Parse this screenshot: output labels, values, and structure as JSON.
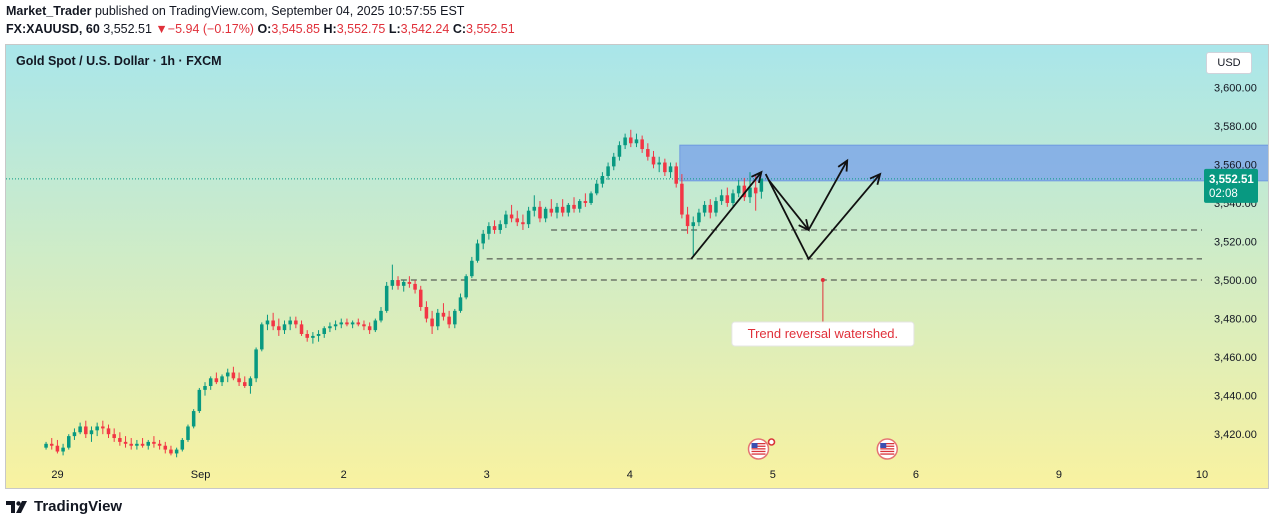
{
  "header": {
    "author": "Market_Trader",
    "published_text": "published on TradingView.com, September 04, 2025 10:57:55 EST",
    "symbol": "FX:XAUUSD, 60",
    "last": "3,552.51",
    "change_arrow": "▼",
    "change": "−5.94 (−0.17%)",
    "o_label": "O:",
    "o_value": "3,545.85",
    "h_label": "H:",
    "h_value": "3,552.75",
    "l_label": "L:",
    "l_value": "3,542.24",
    "c_label": "C:",
    "c_value": "3,552.51"
  },
  "chart": {
    "title": "Gold Spot / U.S. Dollar · 1h · FXCM",
    "currency_button": "USD"
  },
  "chart_data": {
    "type": "candlestick",
    "title": "Gold Spot / U.S. Dollar · 1h · FXCM",
    "y_ticks": [
      "3,600.00",
      "3,580.00",
      "3,560.00",
      "3,540.00",
      "3,520.00",
      "3,500.00",
      "3,480.00",
      "3,460.00",
      "3,440.00",
      "3,420.00"
    ],
    "y_tick_values": [
      3600,
      3580,
      3560,
      3540,
      3520,
      3500,
      3480,
      3460,
      3440,
      3420
    ],
    "ylim": [
      3404,
      3622
    ],
    "x_ticks": [
      "29",
      "Sep",
      "2",
      "3",
      "4",
      "5",
      "6",
      "9",
      "10"
    ],
    "x_tick_day_index": [
      0,
      1,
      2,
      3,
      4,
      5,
      6,
      7,
      8
    ],
    "xlim_day_index": [
      -0.36,
      8.0
    ],
    "last_price_label": "3,552.51",
    "countdown_label": "02:08",
    "last_price": 3552.51,
    "colors": {
      "up": "#089981",
      "down": "#f23645",
      "zone": "#7fa8e8",
      "annotation": "#e0303a",
      "bg_top": "#a9e6ea",
      "bg_bottom": "#f9f2a0"
    },
    "bg_gradient_y": [
      3622,
      3404
    ],
    "watermark": "TradingView",
    "zone": {
      "y_low": 3551.5,
      "y_high": 3570,
      "x_start": 4.35,
      "x_end": 8.9
    },
    "dashed_levels": [
      {
        "y": 3526,
        "x_start": 3.45
      },
      {
        "y": 3511,
        "x_start": 3.0
      },
      {
        "y": 3500,
        "x_start": 2.4
      }
    ],
    "arrows": [
      {
        "points": [
          [
            4.43,
            3511
          ],
          [
            4.92,
            3556
          ]
        ]
      },
      {
        "points": [
          [
            4.97,
            3552
          ],
          [
            5.25,
            3526
          ]
        ]
      },
      {
        "points": [
          [
            5.25,
            3526
          ],
          [
            5.52,
            3562
          ]
        ]
      },
      {
        "points": [
          [
            4.95,
            3555
          ],
          [
            5.25,
            3511
          ],
          [
            5.75,
            3555
          ]
        ]
      }
    ],
    "annotation": {
      "text": "Trend reversal watershed.",
      "anchor": [
        5.35,
        3500
      ],
      "label_y": 3472
    },
    "event_icons": [
      {
        "x": 4.9
      },
      {
        "x": 5.8
      }
    ],
    "ohlc_hourly": [
      [
        3413,
        3416,
        3412,
        3415
      ],
      [
        3415,
        3418,
        3412,
        3414
      ],
      [
        3414,
        3417,
        3410,
        3411
      ],
      [
        3411,
        3415,
        3409,
        3413
      ],
      [
        3413,
        3420,
        3412,
        3419
      ],
      [
        3419,
        3423,
        3417,
        3421
      ],
      [
        3421,
        3426,
        3420,
        3424
      ],
      [
        3424,
        3427,
        3418,
        3420
      ],
      [
        3420,
        3424,
        3416,
        3422
      ],
      [
        3422,
        3426,
        3419,
        3424
      ],
      [
        3424,
        3427,
        3420,
        3423
      ],
      [
        3423,
        3425,
        3418,
        3420
      ],
      [
        3420,
        3423,
        3416,
        3418
      ],
      [
        3418,
        3421,
        3414,
        3416
      ],
      [
        3416,
        3419,
        3413,
        3415
      ],
      [
        3415,
        3418,
        3412,
        3414
      ],
      [
        3414,
        3417,
        3412,
        3415
      ],
      [
        3415,
        3418,
        3413,
        3414
      ],
      [
        3414,
        3417,
        3412,
        3416
      ],
      [
        3416,
        3419,
        3413,
        3415
      ],
      [
        3415,
        3417,
        3412,
        3414
      ],
      [
        3414,
        3416,
        3410,
        3412
      ],
      [
        3412,
        3414,
        3409,
        3410
      ],
      [
        3410,
        3413,
        3408,
        3412
      ],
      [
        3412,
        3418,
        3411,
        3417
      ],
      [
        3417,
        3425,
        3416,
        3424
      ],
      [
        3424,
        3433,
        3423,
        3432
      ],
      [
        3432,
        3444,
        3431,
        3443
      ],
      [
        3443,
        3447,
        3440,
        3445
      ],
      [
        3445,
        3450,
        3443,
        3449
      ],
      [
        3449,
        3452,
        3446,
        3447
      ],
      [
        3447,
        3451,
        3445,
        3450
      ],
      [
        3450,
        3454,
        3447,
        3452
      ],
      [
        3452,
        3455,
        3448,
        3449
      ],
      [
        3449,
        3452,
        3445,
        3447
      ],
      [
        3447,
        3450,
        3444,
        3445
      ],
      [
        3445,
        3450,
        3441,
        3449
      ],
      [
        3449,
        3465,
        3447,
        3464
      ],
      [
        3464,
        3478,
        3463,
        3477
      ],
      [
        3477,
        3482,
        3474,
        3479
      ],
      [
        3479,
        3483,
        3474,
        3476
      ],
      [
        3476,
        3480,
        3471,
        3474
      ],
      [
        3474,
        3479,
        3472,
        3477
      ],
      [
        3477,
        3481,
        3474,
        3479
      ],
      [
        3479,
        3481,
        3475,
        3477
      ],
      [
        3477,
        3479,
        3471,
        3472
      ],
      [
        3472,
        3474,
        3468,
        3470
      ],
      [
        3470,
        3473,
        3467,
        3471
      ],
      [
        3471,
        3474,
        3468,
        3472
      ],
      [
        3472,
        3476,
        3470,
        3475
      ],
      [
        3475,
        3478,
        3473,
        3476
      ],
      [
        3476,
        3479,
        3474,
        3477
      ],
      [
        3477,
        3480,
        3475,
        3478
      ],
      [
        3478,
        3480,
        3476,
        3477
      ],
      [
        3477,
        3479,
        3475,
        3478
      ],
      [
        3478,
        3480,
        3476,
        3477
      ],
      [
        3477,
        3479,
        3474,
        3476
      ],
      [
        3476,
        3478,
        3472,
        3474
      ],
      [
        3474,
        3480,
        3473,
        3479
      ],
      [
        3479,
        3486,
        3478,
        3484
      ],
      [
        3484,
        3499,
        3483,
        3497
      ],
      [
        3497,
        3508,
        3495,
        3500
      ],
      [
        3500,
        3502,
        3495,
        3497
      ],
      [
        3497,
        3500,
        3494,
        3499
      ],
      [
        3499,
        3502,
        3496,
        3498
      ],
      [
        3498,
        3500,
        3493,
        3495
      ],
      [
        3495,
        3497,
        3484,
        3486
      ],
      [
        3486,
        3489,
        3478,
        3480
      ],
      [
        3480,
        3484,
        3472,
        3476
      ],
      [
        3476,
        3485,
        3474,
        3483
      ],
      [
        3483,
        3488,
        3479,
        3481
      ],
      [
        3481,
        3484,
        3475,
        3477
      ],
      [
        3477,
        3485,
        3475,
        3484
      ],
      [
        3484,
        3493,
        3483,
        3491
      ],
      [
        3491,
        3503,
        3490,
        3502
      ],
      [
        3502,
        3512,
        3501,
        3510
      ],
      [
        3510,
        3521,
        3509,
        3519
      ],
      [
        3519,
        3526,
        3516,
        3524
      ],
      [
        3524,
        3530,
        3521,
        3528
      ],
      [
        3528,
        3531,
        3524,
        3526
      ],
      [
        3526,
        3531,
        3524,
        3529
      ],
      [
        3529,
        3536,
        3527,
        3534
      ],
      [
        3534,
        3539,
        3530,
        3532
      ],
      [
        3532,
        3536,
        3528,
        3530
      ],
      [
        3530,
        3534,
        3526,
        3529
      ],
      [
        3529,
        3538,
        3527,
        3536
      ],
      [
        3536,
        3544,
        3533,
        3538
      ],
      [
        3538,
        3541,
        3530,
        3532
      ],
      [
        3532,
        3538,
        3530,
        3537
      ],
      [
        3537,
        3542,
        3533,
        3535
      ],
      [
        3535,
        3540,
        3532,
        3538
      ],
      [
        3538,
        3542,
        3533,
        3535
      ],
      [
        3535,
        3540,
        3533,
        3539
      ],
      [
        3539,
        3543,
        3535,
        3537
      ],
      [
        3537,
        3542,
        3535,
        3541
      ],
      [
        3541,
        3545,
        3538,
        3540
      ],
      [
        3540,
        3546,
        3539,
        3545
      ],
      [
        3545,
        3552,
        3544,
        3550
      ],
      [
        3550,
        3556,
        3548,
        3554
      ],
      [
        3554,
        3561,
        3552,
        3559
      ],
      [
        3559,
        3566,
        3557,
        3564
      ],
      [
        3564,
        3572,
        3562,
        3570
      ],
      [
        3570,
        3576,
        3568,
        3574
      ],
      [
        3574,
        3578,
        3569,
        3571
      ],
      [
        3571,
        3576,
        3569,
        3573
      ],
      [
        3573,
        3575,
        3566,
        3568
      ],
      [
        3568,
        3571,
        3562,
        3564
      ],
      [
        3564,
        3567,
        3558,
        3560
      ],
      [
        3560,
        3564,
        3556,
        3561
      ],
      [
        3561,
        3563,
        3554,
        3556
      ],
      [
        3556,
        3561,
        3553,
        3559
      ],
      [
        3559,
        3561,
        3548,
        3550
      ],
      [
        3550,
        3555,
        3532,
        3534
      ],
      [
        3534,
        3538,
        3524,
        3528
      ],
      [
        3528,
        3533,
        3512,
        3530
      ],
      [
        3530,
        3537,
        3528,
        3535
      ],
      [
        3535,
        3541,
        3533,
        3539
      ],
      [
        3539,
        3542,
        3532,
        3535
      ],
      [
        3535,
        3543,
        3533,
        3541
      ],
      [
        3541,
        3547,
        3539,
        3544
      ],
      [
        3544,
        3548,
        3538,
        3540
      ],
      [
        3540,
        3547,
        3538,
        3545
      ],
      [
        3545,
        3552,
        3543,
        3549
      ],
      [
        3549,
        3553,
        3541,
        3543
      ],
      [
        3543,
        3556,
        3540,
        3548
      ],
      [
        3548,
        3555,
        3536,
        3545
      ],
      [
        3545.85,
        3552.75,
        3542.24,
        3552.51
      ]
    ]
  }
}
